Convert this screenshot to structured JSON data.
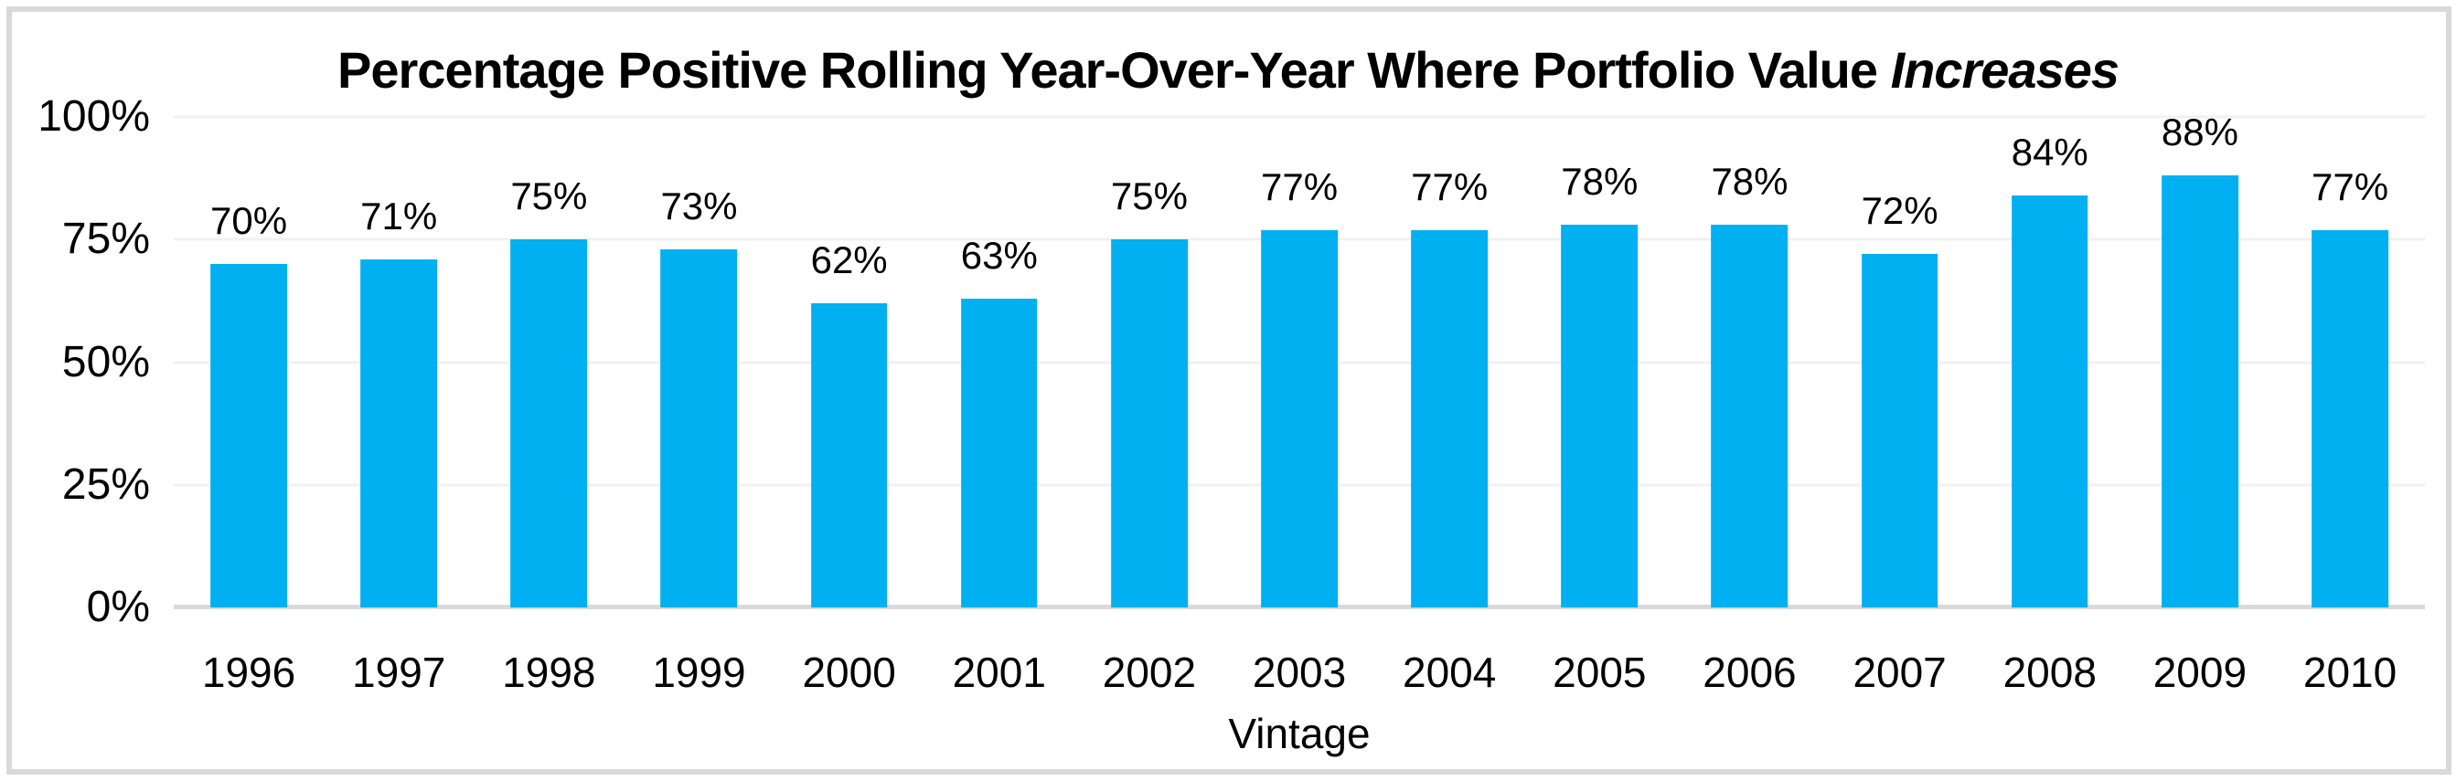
{
  "frame": {
    "border_color": "#d9d9d9"
  },
  "title_parts": {
    "main": "Percentage Positive Rolling Year-Over-Year Where Portfolio Value",
    "italic": "Increases"
  },
  "chart_data": {
    "type": "bar",
    "title": "Percentage Positive Rolling Year-Over-Year Where Portfolio Value Increases",
    "title_italic_word": "Increases",
    "categories": [
      "1996",
      "1997",
      "1998",
      "1999",
      "2000",
      "2001",
      "2002",
      "2003",
      "2004",
      "2005",
      "2006",
      "2007",
      "2008",
      "2009",
      "2010"
    ],
    "values": [
      70,
      71,
      75,
      73,
      62,
      63,
      75,
      77,
      77,
      78,
      78,
      72,
      84,
      88,
      77
    ],
    "value_labels": [
      "70%",
      "71%",
      "75%",
      "73%",
      "62%",
      "63%",
      "75%",
      "77%",
      "77%",
      "78%",
      "78%",
      "72%",
      "84%",
      "88%",
      "77%"
    ],
    "xlabel": "Vintage",
    "ylabel": "",
    "ylim": [
      0,
      100
    ],
    "y_ticks": [
      {
        "label": "100%",
        "value": 100
      },
      {
        "label": "75%",
        "value": 75
      },
      {
        "label": "50%",
        "value": 50
      },
      {
        "label": "25%",
        "value": 25
      },
      {
        "label": "0%",
        "value": 0
      }
    ],
    "grid": true,
    "legend": "none",
    "bar_color": "#00b0f0",
    "gridline_color": "#f1f1f1",
    "axis_line_color": "#d9d9d9",
    "text_color": "#000000"
  }
}
